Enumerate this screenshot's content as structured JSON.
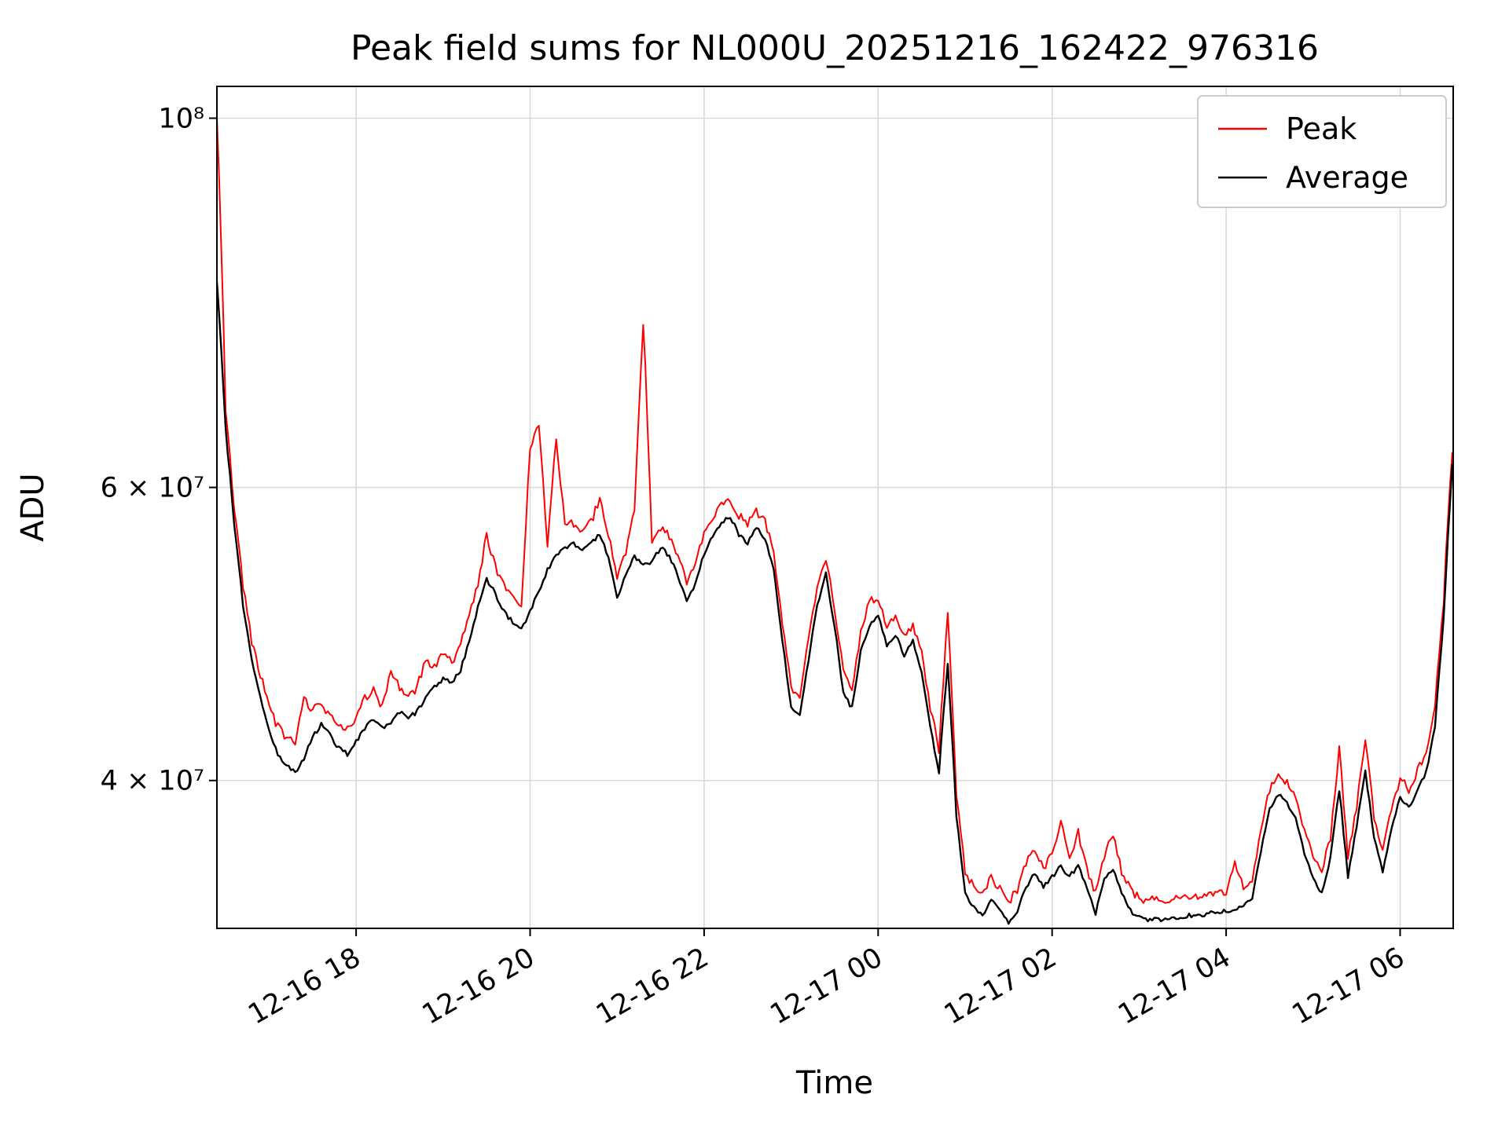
{
  "figure": {
    "title": "Peak field sums for NL000U_20251216_162422_976316",
    "xlabel": "Time",
    "ylabel": "ADU"
  },
  "legend": {
    "entries": [
      {
        "label": "Peak",
        "color": "#ff0000"
      },
      {
        "label": "Average",
        "color": "#000000"
      }
    ]
  },
  "chart_data": {
    "type": "line",
    "title": "Peak field sums for NL000U_20251216_162422_976316",
    "xlabel": "Time",
    "ylabel": "ADU",
    "yscale": "log",
    "grid": true,
    "legend_position": "upper right",
    "x_unit": "hours since 2025-12-16 00:00",
    "x_start_hours": 16.4,
    "x_step_hours": 0.1,
    "n_points": 143,
    "xlim": [
      16.4,
      30.61
    ],
    "value_unit": 10000000,
    "ylim": [
      32600000,
      104500000
    ],
    "xticks": {
      "positions_hours": [
        18,
        20,
        22,
        24,
        26,
        28,
        30
      ],
      "labels": [
        "12-16 18",
        "12-16 20",
        "12-16 22",
        "12-17 00",
        "12-17 02",
        "12-17 04",
        "12-17 06"
      ]
    },
    "yticks": {
      "values": [
        40000000,
        60000000,
        100000000
      ],
      "labels": [
        "4 × 10⁷",
        "6 × 10⁷",
        "10⁸"
      ]
    },
    "series": [
      {
        "name": "Peak",
        "color": "#ff0000",
        "values_1e7": [
          10.0,
          6.62,
          5.8,
          5.2,
          4.82,
          4.6,
          4.4,
          4.28,
          4.22,
          4.18,
          4.45,
          4.38,
          4.42,
          4.35,
          4.3,
          4.26,
          4.34,
          4.45,
          4.5,
          4.4,
          4.62,
          4.52,
          4.46,
          4.52,
          4.7,
          4.66,
          4.75,
          4.68,
          4.8,
          5.0,
          5.22,
          5.58,
          5.35,
          5.2,
          5.12,
          5.05,
          6.28,
          6.5,
          5.48,
          6.38,
          5.65,
          5.68,
          5.62,
          5.68,
          5.88,
          5.58,
          5.28,
          5.45,
          5.78,
          7.5,
          5.55,
          5.64,
          5.58,
          5.42,
          5.24,
          5.38,
          5.6,
          5.72,
          5.82,
          5.86,
          5.74,
          5.66,
          5.78,
          5.68,
          5.46,
          4.95,
          4.52,
          4.48,
          4.82,
          5.2,
          5.4,
          5.05,
          4.62,
          4.52,
          4.88,
          5.1,
          5.1,
          4.92,
          5.0,
          4.85,
          4.94,
          4.75,
          4.4,
          4.15,
          5.0,
          3.9,
          3.5,
          3.44,
          3.4,
          3.48,
          3.42,
          3.36,
          3.42,
          3.54,
          3.62,
          3.53,
          3.58,
          3.76,
          3.58,
          3.7,
          3.52,
          3.4,
          3.58,
          3.7,
          3.5,
          3.42,
          3.38,
          3.37,
          3.37,
          3.37,
          3.38,
          3.38,
          3.39,
          3.39,
          3.4,
          3.4,
          3.41,
          3.55,
          3.43,
          3.47,
          3.7,
          3.93,
          4.0,
          3.96,
          3.88,
          3.7,
          3.58,
          3.5,
          3.68,
          4.15,
          3.58,
          3.83,
          4.2,
          3.78,
          3.6,
          3.83,
          3.98,
          3.93,
          4.03,
          4.13,
          4.4,
          5.1,
          6.3
        ]
      },
      {
        "name": "Average",
        "color": "#000000",
        "values_1e7": [
          8.0,
          6.5,
          5.7,
          5.1,
          4.72,
          4.48,
          4.28,
          4.15,
          4.08,
          4.05,
          4.12,
          4.25,
          4.32,
          4.26,
          4.18,
          4.15,
          4.22,
          4.3,
          4.36,
          4.3,
          4.34,
          4.4,
          4.36,
          4.4,
          4.48,
          4.55,
          4.6,
          4.58,
          4.66,
          4.85,
          5.08,
          5.28,
          5.18,
          5.05,
          4.98,
          4.93,
          5.05,
          5.2,
          5.35,
          5.46,
          5.52,
          5.55,
          5.5,
          5.55,
          5.62,
          5.45,
          5.15,
          5.32,
          5.46,
          5.38,
          5.42,
          5.52,
          5.46,
          5.3,
          5.12,
          5.26,
          5.48,
          5.62,
          5.72,
          5.76,
          5.62,
          5.55,
          5.68,
          5.58,
          5.35,
          4.85,
          4.42,
          4.38,
          4.72,
          5.1,
          5.32,
          4.95,
          4.52,
          4.42,
          4.78,
          4.95,
          5.02,
          4.82,
          4.9,
          4.75,
          4.85,
          4.65,
          4.3,
          4.05,
          4.7,
          3.8,
          3.42,
          3.36,
          3.32,
          3.4,
          3.34,
          3.29,
          3.34,
          3.45,
          3.52,
          3.45,
          3.5,
          3.55,
          3.5,
          3.56,
          3.44,
          3.33,
          3.5,
          3.54,
          3.42,
          3.34,
          3.31,
          3.3,
          3.3,
          3.3,
          3.31,
          3.31,
          3.32,
          3.32,
          3.33,
          3.33,
          3.34,
          3.35,
          3.36,
          3.4,
          3.62,
          3.85,
          3.92,
          3.88,
          3.8,
          3.62,
          3.5,
          3.42,
          3.6,
          3.95,
          3.5,
          3.75,
          4.05,
          3.7,
          3.52,
          3.75,
          3.9,
          3.85,
          3.95,
          4.05,
          4.3,
          5.0,
          6.2
        ]
      }
    ]
  }
}
